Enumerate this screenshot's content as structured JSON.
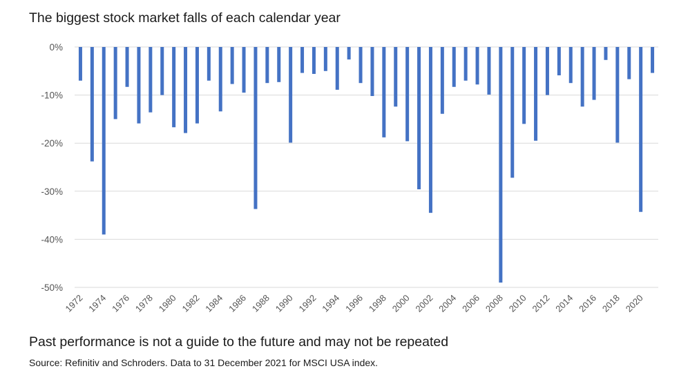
{
  "note": "Past performance is not a guide to the future and may not be repeated",
  "source": "Source: Refinitiv and Schroders. Data to 31 December 2021 for MSCI USA index.",
  "colors": {
    "bar": "#4472C4",
    "grid": "#d9d9d9"
  },
  "chart_data": {
    "type": "bar",
    "title": "The biggest stock market falls of each calendar year",
    "xlabel": "",
    "ylabel": "",
    "ylim": [
      -50,
      0
    ],
    "yticks": [
      0,
      -10,
      -20,
      -30,
      -40,
      -50
    ],
    "ytick_labels": [
      "0%",
      "-10%",
      "-20%",
      "-30%",
      "-40%",
      "-50%"
    ],
    "categories": [
      1972,
      1973,
      1974,
      1975,
      1976,
      1977,
      1978,
      1979,
      1980,
      1981,
      1982,
      1983,
      1984,
      1985,
      1986,
      1987,
      1988,
      1989,
      1990,
      1991,
      1992,
      1993,
      1994,
      1995,
      1996,
      1997,
      1998,
      1999,
      2000,
      2001,
      2002,
      2003,
      2004,
      2005,
      2006,
      2007,
      2008,
      2009,
      2010,
      2011,
      2012,
      2013,
      2014,
      2015,
      2016,
      2017,
      2018,
      2019,
      2020,
      2021
    ],
    "xtick_labels": [
      "1972",
      "1974",
      "1976",
      "1978",
      "1980",
      "1982",
      "1984",
      "1986",
      "1988",
      "1990",
      "1992",
      "1994",
      "1996",
      "1998",
      "2000",
      "2002",
      "2004",
      "2006",
      "2008",
      "2010",
      "2012",
      "2014",
      "2016",
      "2018",
      "2020"
    ],
    "values": [
      -7,
      -23.8,
      -39,
      -15,
      -8.3,
      -15.9,
      -13.6,
      -10,
      -16.7,
      -17.9,
      -15.9,
      -7,
      -13.4,
      -7.7,
      -9.5,
      -33.7,
      -7.5,
      -7.3,
      -19.9,
      -5.4,
      -5.6,
      -5,
      -8.9,
      -2.6,
      -7.5,
      -10.2,
      -18.8,
      -12.4,
      -19.6,
      -29.6,
      -34.5,
      -13.9,
      -8.3,
      -7,
      -7.8,
      -9.9,
      -49,
      -27.2,
      -16,
      -19.5,
      -10,
      -5.9,
      -7.5,
      -12.4,
      -11,
      -2.7,
      -19.9,
      -6.7,
      -34.3,
      -5.4
    ]
  }
}
